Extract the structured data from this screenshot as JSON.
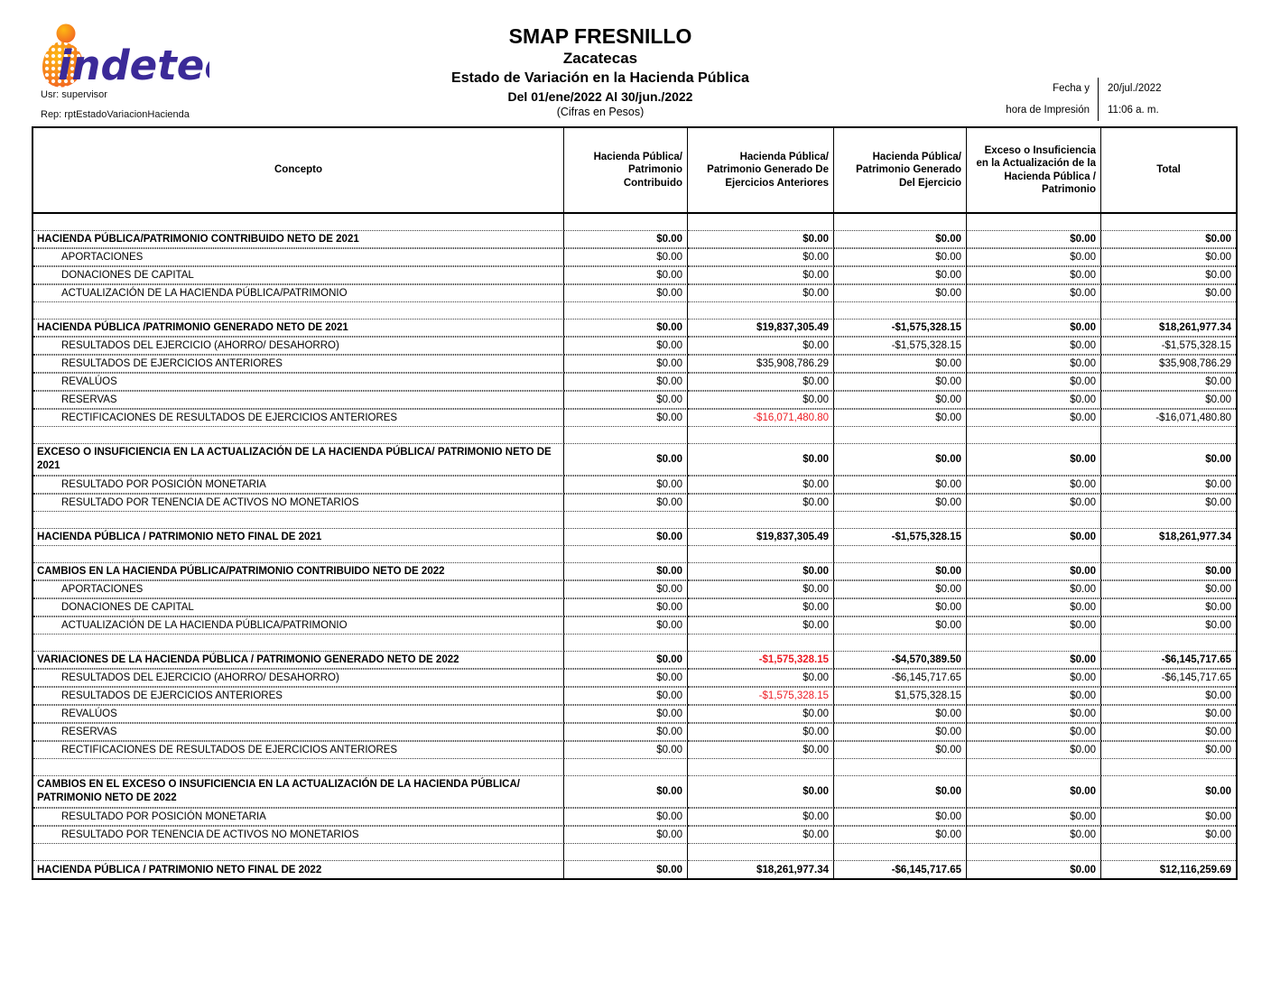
{
  "header": {
    "logo_name": "indetec-logo",
    "user_line": "Usr: supervisor",
    "report_line": "Rep: rptEstadoVariacionHacienda",
    "org": "SMAP FRESNILLO",
    "state": "Zacatecas",
    "title": "Estado de Variación en la Hacienda Pública",
    "period": "Del 01/ene/2022 Al 30/jun./2022",
    "units": "(Cifras en Pesos)",
    "print_label_line1": "Fecha y",
    "print_label_line2": "hora de Impresión",
    "print_date": "20/jul./2022",
    "print_time": "11:06 a. m."
  },
  "colors": {
    "negative_red": "#ed1c24",
    "logo_purple": "#3b2a98",
    "logo_orange": "#f6921e",
    "border_black": "#000000"
  },
  "table": {
    "columns": [
      "Concepto",
      "Hacienda Pública/ Patrimonio Contribuido",
      "Hacienda Pública/ Patrimonio Generado De Ejercicios Anteriores",
      "Hacienda Pública/ Patrimonio Generado Del Ejercicio",
      "Exceso o Insuficiencia en la Actualización de la Hacienda Pública / Patrimonio",
      "Total"
    ],
    "rows": [
      {
        "type": "spacer"
      },
      {
        "type": "section",
        "label": "HACIENDA PÚBLICA/PATRIMONIO CONTRIBUIDO NETO DE 2021",
        "values": [
          "$0.00",
          "$0.00",
          "$0.00",
          "$0.00",
          "$0.00"
        ]
      },
      {
        "type": "detail",
        "label": "APORTACIONES",
        "values": [
          "$0.00",
          "$0.00",
          "$0.00",
          "$0.00",
          "$0.00"
        ]
      },
      {
        "type": "detail",
        "label": "DONACIONES DE CAPITAL",
        "values": [
          "$0.00",
          "$0.00",
          "$0.00",
          "$0.00",
          "$0.00"
        ]
      },
      {
        "type": "detail",
        "label": "ACTUALIZACIÓN DE LA HACIENDA PÚBLICA/PATRIMONIO",
        "values": [
          "$0.00",
          "$0.00",
          "$0.00",
          "$0.00",
          "$0.00"
        ]
      },
      {
        "type": "spacer"
      },
      {
        "type": "section",
        "label": "HACIENDA PÚBLICA /PATRIMONIO GENERADO NETO DE 2021",
        "values": [
          "$0.00",
          "$19,837,305.49",
          "-$1,575,328.15",
          "$0.00",
          "$18,261,977.34"
        ]
      },
      {
        "type": "detail",
        "label": "RESULTADOS DEL EJERCICIO (AHORRO/ DESAHORRO)",
        "values": [
          "$0.00",
          "$0.00",
          "-$1,575,328.15",
          "$0.00",
          "-$1,575,328.15"
        ]
      },
      {
        "type": "detail",
        "label": "RESULTADOS DE EJERCICIOS ANTERIORES",
        "values": [
          "$0.00",
          "$35,908,786.29",
          "$0.00",
          "$0.00",
          "$35,908,786.29"
        ]
      },
      {
        "type": "detail",
        "label": "REVALÚOS",
        "values": [
          "$0.00",
          "$0.00",
          "$0.00",
          "$0.00",
          "$0.00"
        ]
      },
      {
        "type": "detail",
        "label": "RESERVAS",
        "values": [
          "$0.00",
          "$0.00",
          "$0.00",
          "$0.00",
          "$0.00"
        ]
      },
      {
        "type": "detail",
        "label": "RECTIFICACIONES DE RESULTADOS DE EJERCICIOS ANTERIORES",
        "values": [
          "$0.00",
          "-$16,071,480.80",
          "$0.00",
          "$0.00",
          "-$16,071,480.80"
        ],
        "red": [
          1
        ]
      },
      {
        "type": "spacer"
      },
      {
        "type": "section",
        "tall": true,
        "label": "EXCESO O INSUFICIENCIA EN LA ACTUALIZACIÓN DE LA HACIENDA PÚBLICA/ PATRIMONIO NETO DE 2021",
        "values": [
          "$0.00",
          "$0.00",
          "$0.00",
          "$0.00",
          "$0.00"
        ]
      },
      {
        "type": "detail",
        "label": "RESULTADO POR POSICIÓN MONETARIA",
        "values": [
          "$0.00",
          "$0.00",
          "$0.00",
          "$0.00",
          "$0.00"
        ]
      },
      {
        "type": "detail",
        "label": "RESULTADO POR TENENCIA DE ACTIVOS NO MONETARIOS",
        "values": [
          "$0.00",
          "$0.00",
          "$0.00",
          "$0.00",
          "$0.00"
        ]
      },
      {
        "type": "spacer"
      },
      {
        "type": "total",
        "label": "HACIENDA PÚBLICA / PATRIMONIO  NETO  FINAL DE 2021",
        "values": [
          "$0.00",
          "$19,837,305.49",
          "-$1,575,328.15",
          "$0.00",
          "$18,261,977.34"
        ]
      },
      {
        "type": "spacer"
      },
      {
        "type": "section",
        "label": "CAMBIOS EN LA HACIENDA PÚBLICA/PATRIMONIO CONTRIBUIDO NETO DE 2022",
        "values": [
          "$0.00",
          "$0.00",
          "$0.00",
          "$0.00",
          "$0.00"
        ]
      },
      {
        "type": "detail",
        "label": "APORTACIONES",
        "values": [
          "$0.00",
          "$0.00",
          "$0.00",
          "$0.00",
          "$0.00"
        ]
      },
      {
        "type": "detail",
        "label": "DONACIONES DE CAPITAL",
        "values": [
          "$0.00",
          "$0.00",
          "$0.00",
          "$0.00",
          "$0.00"
        ]
      },
      {
        "type": "detail",
        "label": "ACTUALIZACIÓN DE LA HACIENDA PÚBLICA/PATRIMONIO",
        "values": [
          "$0.00",
          "$0.00",
          "$0.00",
          "$0.00",
          "$0.00"
        ]
      },
      {
        "type": "spacer"
      },
      {
        "type": "section",
        "label": "VARIACIONES DE LA HACIENDA PÚBLICA / PATRIMONIO GENERADO NETO DE 2022",
        "values": [
          "$0.00",
          "-$1,575,328.15",
          "-$4,570,389.50",
          "$0.00",
          "-$6,145,717.65"
        ],
        "red": [
          1
        ]
      },
      {
        "type": "detail",
        "label": "RESULTADOS DEL EJERCICIO (AHORRO/ DESAHORRO)",
        "values": [
          "$0.00",
          "$0.00",
          "-$6,145,717.65",
          "$0.00",
          "-$6,145,717.65"
        ]
      },
      {
        "type": "detail",
        "label": "RESULTADOS DE EJERCICIOS ANTERIORES",
        "values": [
          "$0.00",
          "-$1,575,328.15",
          "$1,575,328.15",
          "$0.00",
          "$0.00"
        ],
        "red": [
          1
        ]
      },
      {
        "type": "detail",
        "label": "REVALÚOS",
        "values": [
          "$0.00",
          "$0.00",
          "$0.00",
          "$0.00",
          "$0.00"
        ]
      },
      {
        "type": "detail",
        "label": "RESERVAS",
        "values": [
          "$0.00",
          "$0.00",
          "$0.00",
          "$0.00",
          "$0.00"
        ]
      },
      {
        "type": "detail",
        "label": "RECTIFICACIONES DE RESULTADOS DE EJERCICIOS ANTERIORES",
        "values": [
          "$0.00",
          "$0.00",
          "$0.00",
          "$0.00",
          "$0.00"
        ]
      },
      {
        "type": "spacer"
      },
      {
        "type": "section",
        "tall": true,
        "label": "CAMBIOS EN EL EXCESO O INSUFICIENCIA EN LA ACTUALIZACIÓN DE LA HACIENDA PÚBLICA/ PATRIMONIO NETO DE 2022",
        "values": [
          "$0.00",
          "$0.00",
          "$0.00",
          "$0.00",
          "$0.00"
        ]
      },
      {
        "type": "detail",
        "label": "RESULTADO POR POSICIÓN MONETARIA",
        "values": [
          "$0.00",
          "$0.00",
          "$0.00",
          "$0.00",
          "$0.00"
        ]
      },
      {
        "type": "detail",
        "label": "RESULTADO POR TENENCIA DE ACTIVOS NO MONETARIOS",
        "values": [
          "$0.00",
          "$0.00",
          "$0.00",
          "$0.00",
          "$0.00"
        ]
      },
      {
        "type": "spacer"
      },
      {
        "type": "total",
        "final": true,
        "label": "HACIENDA PÚBLICA / PATRIMONIO NETO FINAL DE 2022",
        "values": [
          "$0.00",
          "$18,261,977.34",
          "-$6,145,717.65",
          "$0.00",
          "$12,116,259.69"
        ]
      }
    ]
  }
}
